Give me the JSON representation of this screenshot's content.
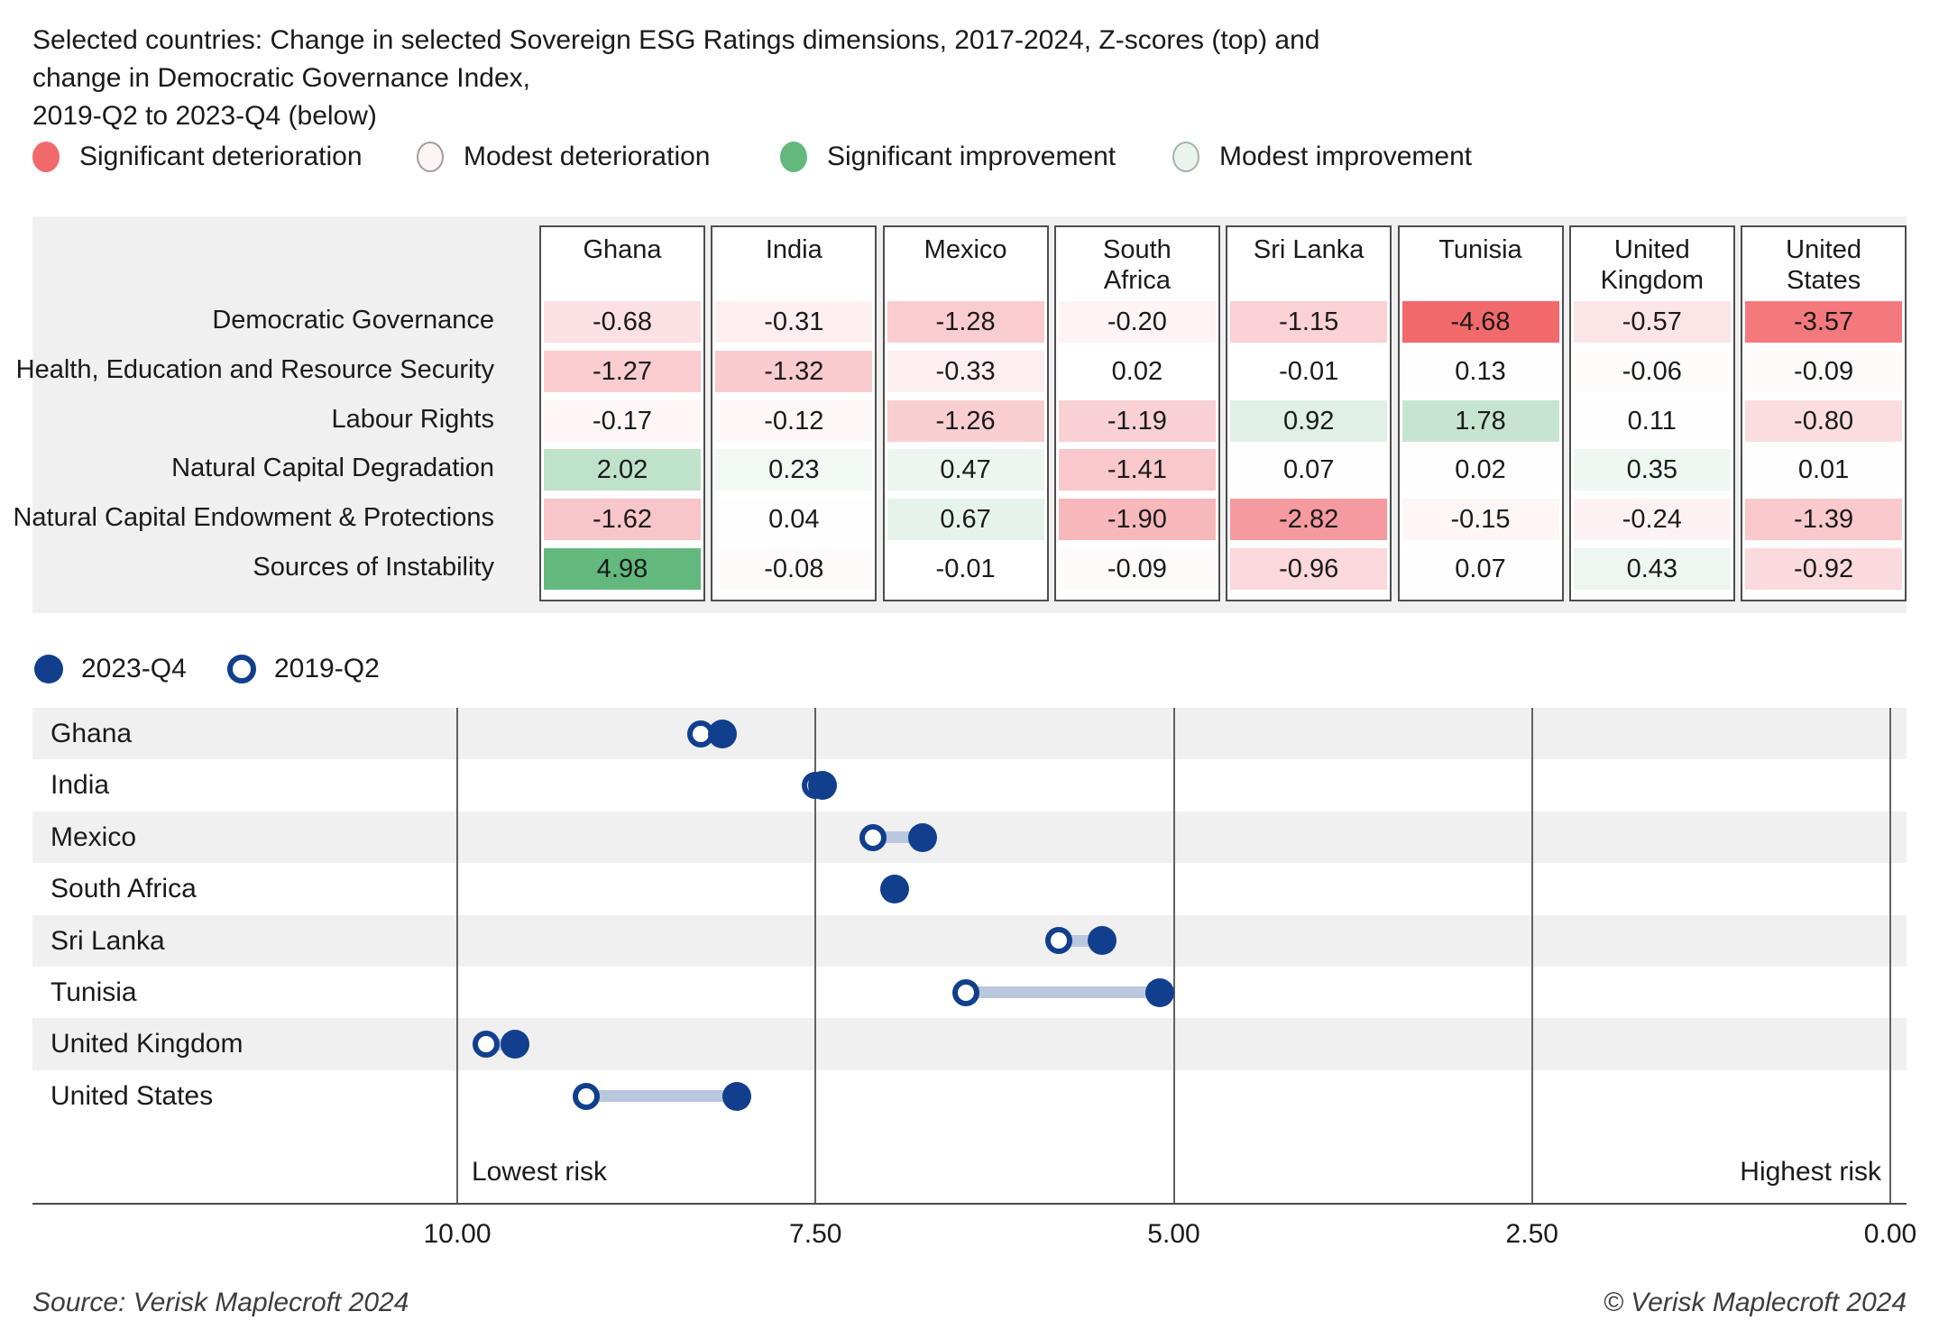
{
  "title": "Selected countries: Change in selected Sovereign ESG Ratings dimensions, 2017-2024, Z-scores (top) and change in Democratic Governance Index,\n2019-Q2 to 2023-Q4 (below)",
  "category_legend": [
    {
      "label": "Significant deterioration",
      "color": "#f2696c",
      "border": "#f2696c"
    },
    {
      "label": "Modest deterioration",
      "color": "#fdf4f4",
      "border": "#a39c9c"
    },
    {
      "label": "Significant improvement",
      "color": "#63b97d",
      "border": "#63b97d"
    },
    {
      "label": "Modest improvement",
      "color": "#e9f4ed",
      "border": "#a5b2a9"
    }
  ],
  "table": {
    "row_labels": [
      "Democratic Governance",
      "Health, Education and Resource Security",
      "Labour Rights",
      "Natural Capital Degradation",
      "Natural Capital Endowment & Protections",
      "Sources of Instability"
    ],
    "columns": [
      {
        "country": "Ghana",
        "values": [
          "-0.68",
          "-1.27",
          "-0.17",
          "2.02",
          "-1.62",
          "4.98"
        ],
        "colors": [
          "#fbe1e3",
          "#f9cdd0",
          "#fef6f6",
          "#bfe2ca",
          "#f8c5c9",
          "#63b97d"
        ]
      },
      {
        "country": "India",
        "values": [
          "-0.31",
          "-1.32",
          "-0.12",
          "0.23",
          "0.04",
          "-0.08"
        ],
        "colors": [
          "#fdeff0",
          "#f9cbce",
          "#fef7f7",
          "#f2f9f4",
          "#fefefe",
          "#fefafa"
        ]
      },
      {
        "country": "Mexico",
        "values": [
          "-1.28",
          "-0.33",
          "-1.26",
          "0.47",
          "0.67",
          "-0.01"
        ],
        "colors": [
          "#f9cdd0",
          "#fdeeef",
          "#f9ced1",
          "#ecf6ef",
          "#e6f3ea",
          "#ffffff"
        ]
      },
      {
        "country": "South Africa",
        "values": [
          "-0.20",
          "0.02",
          "-1.19",
          "-1.41",
          "-1.90",
          "-0.09"
        ],
        "colors": [
          "#fef4f5",
          "#ffffff",
          "#f9d0d3",
          "#f9c8cb",
          "#f7b8bb",
          "#fefafa"
        ]
      },
      {
        "country": "Sri Lanka",
        "values": [
          "-1.15",
          "-0.01",
          "0.92",
          "0.07",
          "-2.82",
          "-0.96"
        ],
        "colors": [
          "#fad1d4",
          "#ffffff",
          "#e0f0e6",
          "#fefefe",
          "#f59a9e",
          "#fbd8db"
        ]
      },
      {
        "country": "Tunisia",
        "values": [
          "-4.68",
          "0.13",
          "1.78",
          "0.02",
          "-0.15",
          "0.07"
        ],
        "colors": [
          "#f2696c",
          "#fcfdfc",
          "#c6e5d0",
          "#fefefe",
          "#fef5f5",
          "#fefefe"
        ]
      },
      {
        "country": "United Kingdom",
        "values": [
          "-0.57",
          "-0.06",
          "0.11",
          "0.35",
          "-0.24",
          "0.43"
        ],
        "colors": [
          "#fce5e7",
          "#fefbfb",
          "#fdfefd",
          "#eff7f2",
          "#fdf2f3",
          "#edf6f0"
        ]
      },
      {
        "country": "United States",
        "values": [
          "-3.57",
          "-0.09",
          "-0.80",
          "0.01",
          "-1.39",
          "-0.92"
        ],
        "colors": [
          "#f4797d",
          "#fefafa",
          "#fbdde0",
          "#fefefe",
          "#f9c9cc",
          "#fbdadd"
        ]
      }
    ]
  },
  "series_legend": [
    {
      "label": "2023-Q4",
      "style": "filled"
    },
    {
      "label": "2019-Q2",
      "style": "open"
    }
  ],
  "chart_data": [
    {
      "type": "heatmap",
      "title": "Change in selected Sovereign ESG Ratings dimensions, 2017-2024, Z-scores",
      "rows": [
        "Democratic Governance",
        "Health, Education and Resource Security",
        "Labour Rights",
        "Natural Capital Degradation",
        "Natural Capital Endowment & Protections",
        "Sources of Instability"
      ],
      "columns": [
        "Ghana",
        "India",
        "Mexico",
        "South Africa",
        "Sri Lanka",
        "Tunisia",
        "United Kingdom",
        "United States"
      ],
      "values": [
        [
          -0.68,
          -0.31,
          -1.28,
          -0.2,
          -1.15,
          -4.68,
          -0.57,
          -3.57
        ],
        [
          -1.27,
          -1.32,
          -0.33,
          0.02,
          -0.01,
          0.13,
          -0.06,
          -0.09
        ],
        [
          -0.17,
          -0.12,
          -1.26,
          -1.19,
          0.92,
          1.78,
          0.11,
          -0.8
        ],
        [
          2.02,
          0.23,
          0.47,
          -1.41,
          0.07,
          0.02,
          0.35,
          0.01
        ],
        [
          -1.62,
          0.04,
          0.67,
          -1.9,
          -2.82,
          -0.15,
          -0.24,
          -1.39
        ],
        [
          4.98,
          -0.08,
          -0.01,
          -0.09,
          -0.96,
          0.07,
          0.43,
          -0.92
        ]
      ]
    },
    {
      "type": "dumbbell",
      "title": "Change in Democratic Governance Index, 2019-Q2 to 2023-Q4",
      "categories": [
        "Ghana",
        "India",
        "Mexico",
        "South Africa",
        "Sri Lanka",
        "Tunisia",
        "United Kingdom",
        "United States"
      ],
      "series": [
        {
          "name": "2019-Q2",
          "values": [
            8.3,
            7.5,
            7.1,
            6.95,
            5.8,
            6.45,
            9.8,
            9.1
          ]
        },
        {
          "name": "2023-Q4",
          "values": [
            8.15,
            7.45,
            6.75,
            6.95,
            5.5,
            5.1,
            9.6,
            8.05
          ]
        }
      ],
      "x_ticks": [
        10,
        7.5,
        5,
        2.5,
        0
      ],
      "x_tick_labels": [
        "10.00",
        "7.50",
        "5.00",
        "2.50",
        "0.00"
      ],
      "x_range": [
        10,
        0
      ],
      "annotation_left": "Lowest risk",
      "annotation_right": "Highest risk",
      "grid": true,
      "dot_color": "#113f8e",
      "connector_color": "#b9c7df",
      "stripe_color": "#f0f0f0"
    }
  ],
  "footer": {
    "source": "Source: Verisk Maplecroft 2024",
    "copyright": "© Verisk Maplecroft 2024"
  }
}
